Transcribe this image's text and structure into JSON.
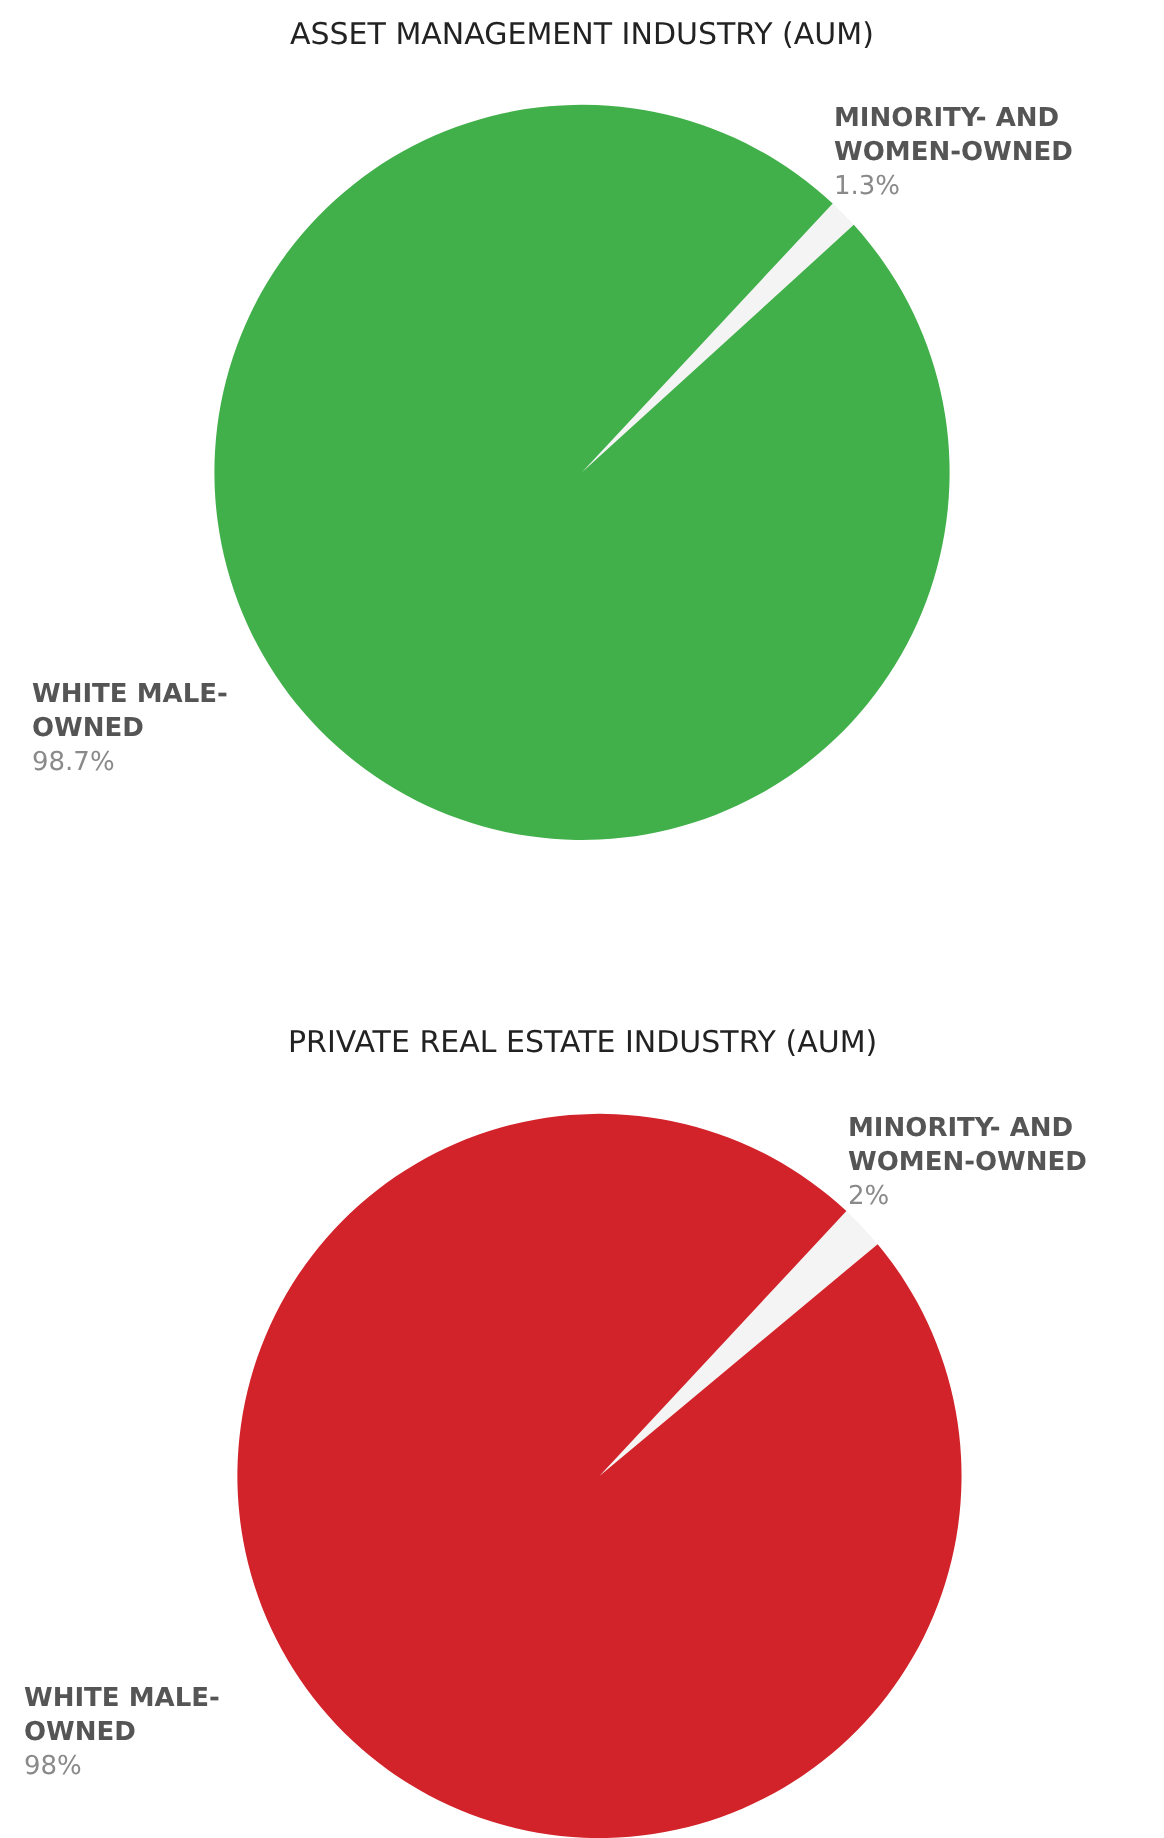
{
  "chart_data": [
    {
      "type": "pie",
      "title": "ASSET MANAGEMENT INDUSTRY (AUM)",
      "categories": [
        "MINORITY- AND\nWOMEN-OWNED",
        "WHITE MALE-\nOWNED"
      ],
      "values": [
        1.3,
        98.7
      ],
      "colors": [
        "#f4f4f4",
        "#41b04a"
      ],
      "value_labels": [
        "1.3%",
        "98.7%"
      ],
      "legend": false
    },
    {
      "type": "pie",
      "title": "PRIVATE REAL ESTATE INDUSTRY (AUM)",
      "categories": [
        "MINORITY- AND\nWOMEN-OWNED",
        "WHITE MALE-\nOWNED"
      ],
      "values": [
        2,
        98
      ],
      "colors": [
        "#f4f4f4",
        "#d2232a"
      ],
      "value_labels": [
        "2%",
        "98%"
      ],
      "legend": false
    }
  ]
}
